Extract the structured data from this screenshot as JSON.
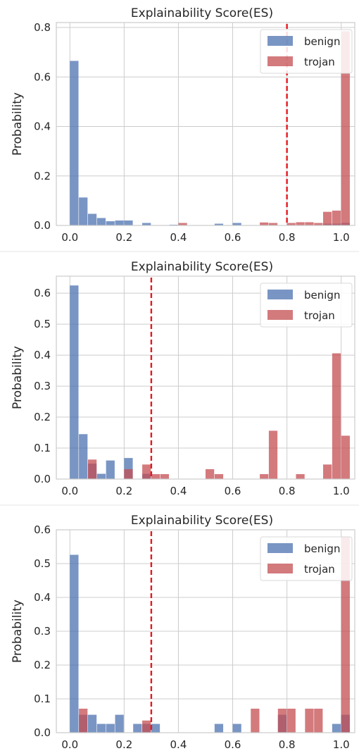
{
  "colors": {
    "benign": "#4c72b0",
    "trojan": "#c44e52",
    "threshold": "#e6191f"
  },
  "chart_data": [
    {
      "type": "bar",
      "title": "Explainability Score(ES)",
      "xlabel": "",
      "ylabel": "Probability",
      "xlim": [
        -0.05,
        1.05
      ],
      "ylim": [
        0,
        0.82
      ],
      "xticks": [
        "0.0",
        "0.2",
        "0.4",
        "0.6",
        "0.8",
        "1.0"
      ],
      "yticks": [
        "0.0",
        "0.2",
        "0.4",
        "0.6",
        "0.8"
      ],
      "grid": true,
      "legend_position": "top-right",
      "threshold": 0.8,
      "bin_width": 0.0333,
      "series": [
        {
          "name": "benign",
          "bins": [
            [
              0.0,
              0.665
            ],
            [
              0.0333,
              0.113
            ],
            [
              0.0667,
              0.047
            ],
            [
              0.1,
              0.03
            ],
            [
              0.1333,
              0.017
            ],
            [
              0.1667,
              0.02
            ],
            [
              0.2,
              0.02
            ],
            [
              0.2667,
              0.01
            ],
            [
              0.3667,
              0.003
            ],
            [
              0.5333,
              0.007
            ],
            [
              0.6,
              0.01
            ],
            [
              0.9333,
              0.007
            ],
            [
              0.9667,
              0.007
            ],
            [
              1.0,
              0.01
            ]
          ]
        },
        {
          "name": "trojan",
          "bins": [
            [
              0.4,
              0.01
            ],
            [
              0.7,
              0.012
            ],
            [
              0.7333,
              0.01
            ],
            [
              0.8,
              0.01
            ],
            [
              0.8333,
              0.013
            ],
            [
              0.8667,
              0.013
            ],
            [
              0.9,
              0.01
            ],
            [
              0.9333,
              0.055
            ],
            [
              0.9667,
              0.06
            ],
            [
              1.0,
              0.785
            ]
          ]
        }
      ]
    },
    {
      "type": "bar",
      "title": "Explainability Score(ES)",
      "xlabel": "",
      "ylabel": "Probability",
      "xlim": [
        -0.05,
        1.05
      ],
      "ylim": [
        0,
        0.655
      ],
      "xticks": [
        "0.0",
        "0.2",
        "0.4",
        "0.6",
        "0.8",
        "1.0"
      ],
      "yticks": [
        "0.0",
        "0.1",
        "0.2",
        "0.3",
        "0.4",
        "0.5",
        "0.6"
      ],
      "grid": true,
      "legend_position": "top-right",
      "threshold": 0.3,
      "bin_width": 0.0333,
      "series": [
        {
          "name": "benign",
          "bins": [
            [
              0.0,
              0.625
            ],
            [
              0.0333,
              0.145
            ],
            [
              0.0667,
              0.05
            ],
            [
              0.1,
              0.017
            ],
            [
              0.1333,
              0.06
            ],
            [
              0.2,
              0.068
            ],
            [
              0.2667,
              0.017
            ]
          ]
        },
        {
          "name": "trojan",
          "bins": [
            [
              0.0667,
              0.063
            ],
            [
              0.2,
              0.032
            ],
            [
              0.2667,
              0.047
            ],
            [
              0.3,
              0.016
            ],
            [
              0.3333,
              0.016
            ],
            [
              0.5,
              0.032
            ],
            [
              0.5333,
              0.016
            ],
            [
              0.7,
              0.016
            ],
            [
              0.7333,
              0.156
            ],
            [
              0.8333,
              0.016
            ],
            [
              0.9333,
              0.047
            ],
            [
              0.9667,
              0.406
            ],
            [
              1.0,
              0.14
            ]
          ]
        }
      ]
    },
    {
      "type": "bar",
      "title": "Explainability Score(ES)",
      "xlabel": "",
      "ylabel": "Probability",
      "xlim": [
        -0.05,
        1.05
      ],
      "ylim": [
        0,
        0.6
      ],
      "xticks": [
        "0.0",
        "0.2",
        "0.4",
        "0.6",
        "0.8",
        "1.0"
      ],
      "yticks": [
        "0.0",
        "0.1",
        "0.2",
        "0.3",
        "0.4",
        "0.5",
        "0.6"
      ],
      "grid": true,
      "legend_position": "top-right",
      "threshold": 0.3,
      "bin_width": 0.0333,
      "series": [
        {
          "name": "benign",
          "bins": [
            [
              0.0,
              0.526
            ],
            [
              0.0333,
              0.053
            ],
            [
              0.0667,
              0.053
            ],
            [
              0.1,
              0.026
            ],
            [
              0.1333,
              0.026
            ],
            [
              0.1667,
              0.053
            ],
            [
              0.2333,
              0.026
            ],
            [
              0.2667,
              0.026
            ],
            [
              0.3,
              0.026
            ],
            [
              0.5333,
              0.026
            ],
            [
              0.6,
              0.026
            ],
            [
              0.7667,
              0.053
            ],
            [
              0.9667,
              0.026
            ],
            [
              1.0,
              0.053
            ]
          ]
        },
        {
          "name": "trojan",
          "bins": [
            [
              0.0333,
              0.071
            ],
            [
              0.2667,
              0.036
            ],
            [
              0.6667,
              0.071
            ],
            [
              0.7667,
              0.071
            ],
            [
              0.8,
              0.071
            ],
            [
              0.8667,
              0.071
            ],
            [
              0.9,
              0.071
            ],
            [
              1.0,
              0.58
            ]
          ]
        }
      ]
    }
  ]
}
